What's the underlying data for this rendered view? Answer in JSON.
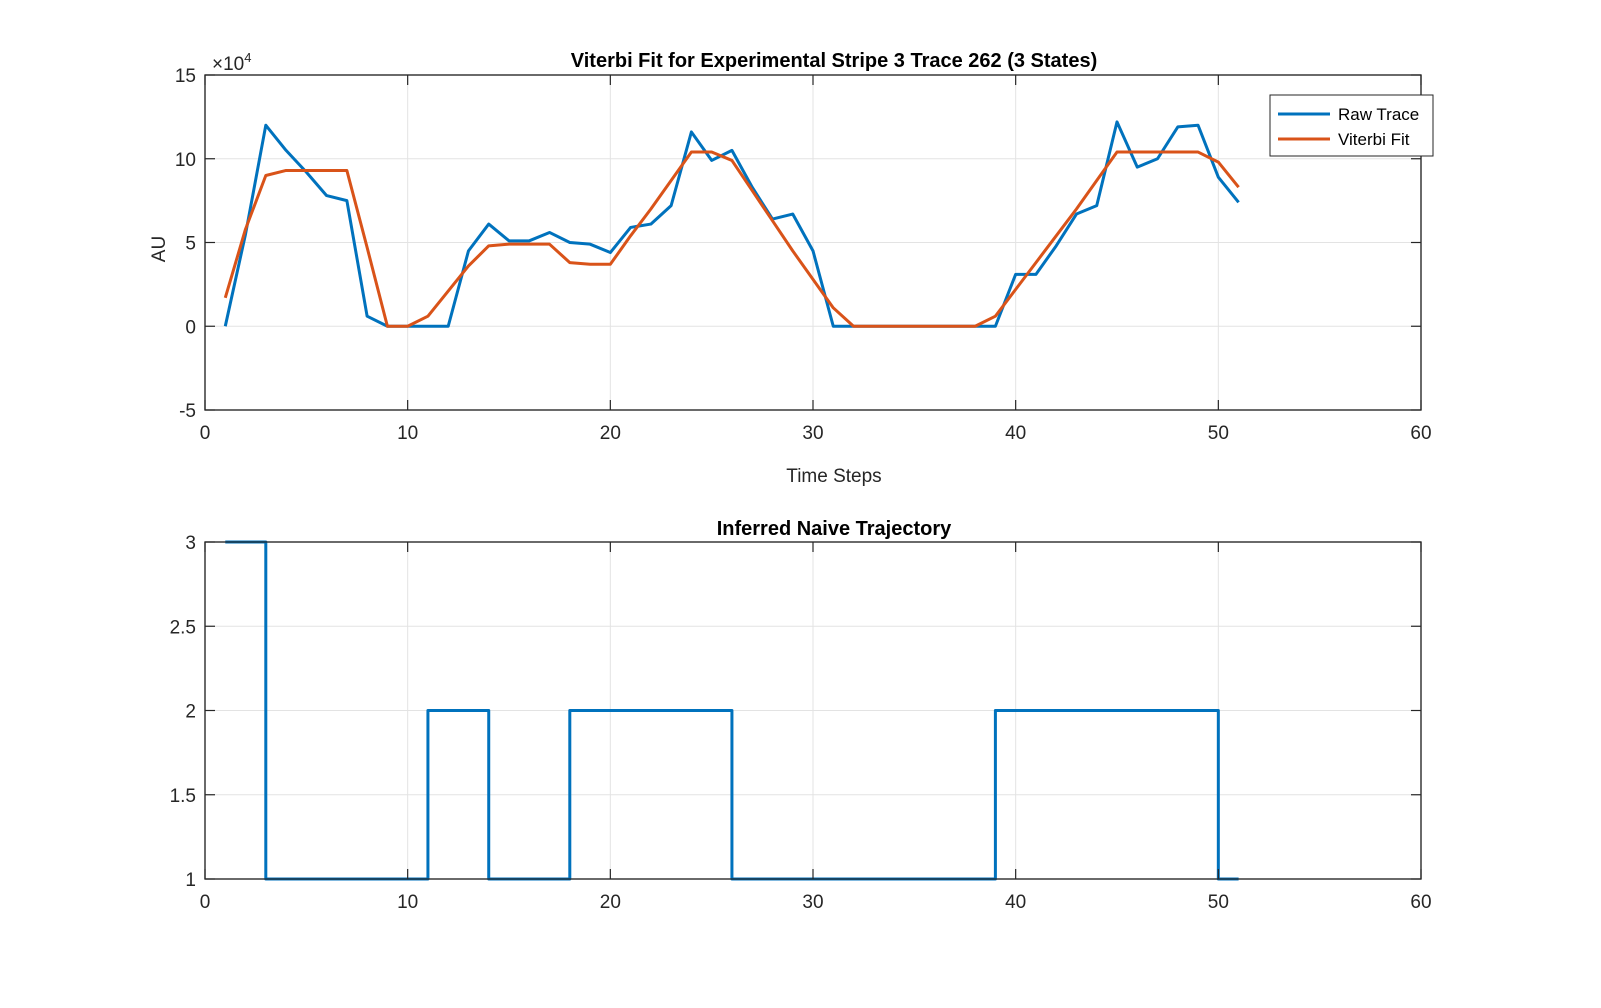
{
  "colors": {
    "series_1": "#0072BD",
    "series_2": "#D95319",
    "grid": "#e3e3e3",
    "axis": "#262626",
    "background": "#ffffff"
  },
  "chart_data": [
    {
      "type": "line",
      "title": "Viterbi Fit for Experimental Stripe 3 Trace 262 (3 States)",
      "xlabel": "Time Steps",
      "ylabel": "AU",
      "y_exponent_label": "×10",
      "y_exponent_power": "4",
      "xlim": [
        0,
        60
      ],
      "ylim": [
        -5,
        15
      ],
      "y_scale_factor": 10000,
      "xticks": [
        0,
        10,
        20,
        30,
        40,
        50,
        60
      ],
      "yticks": [
        -5,
        0,
        5,
        10,
        15
      ],
      "xtick_labels": [
        "0",
        "10",
        "20",
        "30",
        "40",
        "50",
        "60"
      ],
      "ytick_labels": [
        "-5",
        "0",
        "5",
        "10",
        "15"
      ],
      "grid": true,
      "legend_placement": "top-right",
      "x": [
        1,
        2,
        3,
        4,
        5,
        6,
        7,
        8,
        9,
        10,
        11,
        12,
        13,
        14,
        15,
        16,
        17,
        18,
        19,
        20,
        21,
        22,
        23,
        24,
        25,
        26,
        27,
        28,
        29,
        30,
        31,
        32,
        33,
        34,
        35,
        36,
        37,
        38,
        39,
        40,
        41,
        42,
        43,
        44,
        45,
        46,
        47,
        48,
        49,
        50,
        51
      ],
      "series": [
        {
          "name": "Raw Trace",
          "values": [
            0,
            5.5,
            12,
            10.5,
            9.2,
            7.8,
            7.5,
            0.6,
            0,
            0,
            0,
            0,
            4.5,
            6.1,
            5.1,
            5.1,
            5.6,
            5,
            4.9,
            4.4,
            5.9,
            6.1,
            7.2,
            11.6,
            9.9,
            10.5,
            8.3,
            6.4,
            6.7,
            4.5,
            0,
            0,
            0,
            0,
            0,
            0,
            0,
            0,
            0,
            3.1,
            3.1,
            4.8,
            6.7,
            7.2,
            12.2,
            9.5,
            10,
            11.9,
            12,
            8.9,
            7.4
          ],
          "color": "#0072BD"
        },
        {
          "name": "Viterbi Fit",
          "values": [
            1.7,
            5.8,
            9,
            9.3,
            9.3,
            9.3,
            9.3,
            4.7,
            0,
            0,
            0.6,
            2.1,
            3.6,
            4.8,
            4.9,
            4.9,
            4.9,
            3.8,
            3.7,
            3.7,
            5.4,
            7,
            8.7,
            10.4,
            10.4,
            9.9,
            8.1,
            6.3,
            4.5,
            2.8,
            1.1,
            0,
            0,
            0,
            0,
            0,
            0,
            0,
            0.6,
            2.2,
            3.8,
            5.4,
            7,
            8.7,
            10.4,
            10.4,
            10.4,
            10.4,
            10.4,
            9.8,
            8.3
          ],
          "color": "#D95319"
        }
      ]
    },
    {
      "type": "line",
      "step": true,
      "title": "Inferred Naive Trajectory",
      "xlabel": "",
      "ylabel": "",
      "xlim": [
        0,
        60
      ],
      "ylim": [
        1,
        3
      ],
      "xticks": [
        0,
        10,
        20,
        30,
        40,
        50,
        60
      ],
      "yticks": [
        1,
        1.5,
        2,
        2.5,
        3
      ],
      "xtick_labels": [
        "0",
        "10",
        "20",
        "30",
        "40",
        "50",
        "60"
      ],
      "ytick_labels": [
        "1",
        "1.5",
        "2",
        "2.5",
        "3"
      ],
      "grid": true,
      "x": [
        1,
        3,
        3,
        11,
        11,
        14,
        14,
        18,
        18,
        26,
        26,
        39,
        39,
        50,
        50,
        51
      ],
      "series": [
        {
          "name": "",
          "values": [
            3,
            3,
            1,
            1,
            2,
            2,
            1,
            1,
            2,
            2,
            1,
            1,
            2,
            2,
            1,
            1
          ],
          "color": "#0072BD"
        }
      ]
    }
  ]
}
